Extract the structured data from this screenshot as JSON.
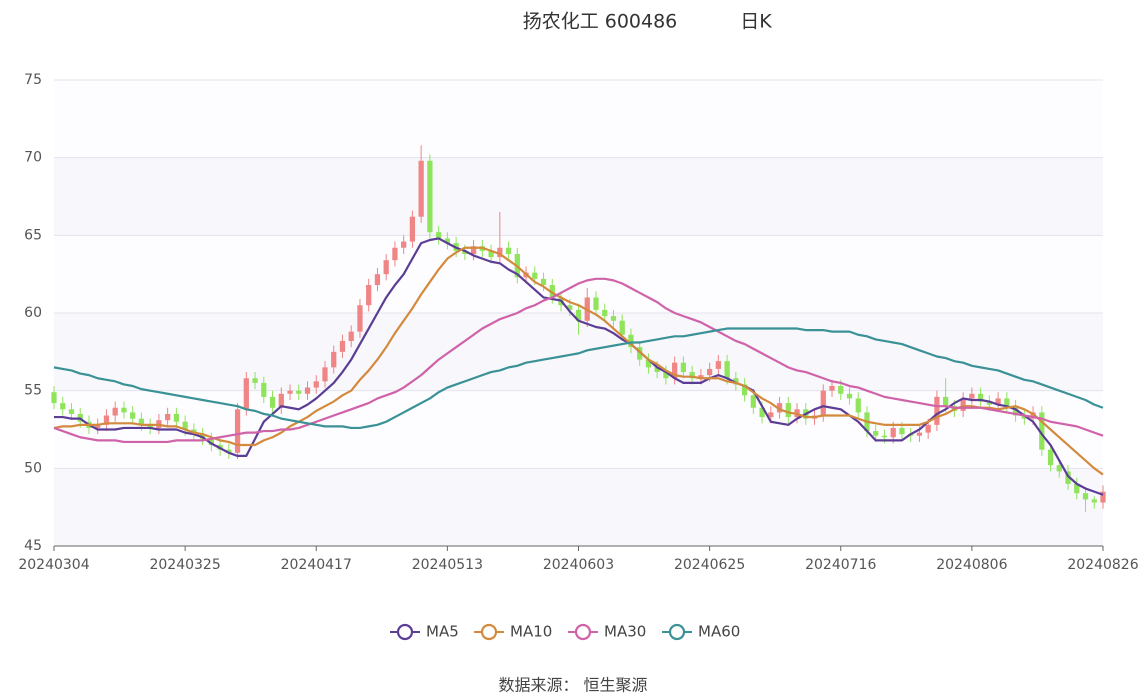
{
  "chart_data": {
    "type": "candlestick",
    "title": "扬农化工 600486",
    "period": "日K",
    "source": "数据来源： 恒生聚源",
    "ylim": [
      45,
      75
    ],
    "yticks": [
      45,
      50,
      55,
      60,
      65,
      70,
      75
    ],
    "grid": true,
    "legend": "bottom",
    "up_color": "#ef8585",
    "down_color": "#8fe45c",
    "categories": [
      "20240304",
      null,
      null,
      null,
      null,
      null,
      null,
      null,
      null,
      null,
      null,
      null,
      null,
      null,
      null,
      "20240325",
      null,
      null,
      null,
      null,
      null,
      null,
      null,
      null,
      null,
      null,
      null,
      null,
      null,
      null,
      "20240417",
      null,
      null,
      null,
      null,
      null,
      null,
      null,
      null,
      null,
      null,
      null,
      null,
      null,
      null,
      "20240513",
      null,
      null,
      null,
      null,
      null,
      null,
      null,
      null,
      null,
      null,
      null,
      null,
      null,
      null,
      "20240603",
      null,
      null,
      null,
      null,
      null,
      null,
      null,
      null,
      null,
      null,
      null,
      null,
      null,
      null,
      "20240625",
      null,
      null,
      null,
      null,
      null,
      null,
      null,
      null,
      null,
      null,
      null,
      null,
      null,
      null,
      "20240716",
      null,
      null,
      null,
      null,
      null,
      null,
      null,
      null,
      null,
      null,
      null,
      null,
      null,
      null,
      "20240806",
      null,
      null,
      null,
      null,
      null,
      null,
      null,
      null,
      null,
      null,
      null,
      null,
      null,
      null,
      "20240826"
    ],
    "open": [
      54.9,
      54.2,
      53.8,
      53.5,
      53.0,
      52.6,
      52.8,
      53.4,
      53.9,
      53.6,
      53.2,
      52.8,
      52.6,
      53.1,
      53.5,
      53.0,
      52.5,
      52.2,
      51.9,
      51.5,
      51.2,
      51.0,
      53.8,
      55.8,
      55.5,
      54.6,
      53.9,
      54.8,
      55.0,
      54.8,
      55.2,
      55.6,
      56.5,
      57.5,
      58.2,
      58.8,
      60.5,
      61.8,
      62.5,
      63.4,
      64.2,
      64.6,
      66.2,
      69.8,
      65.2,
      64.8,
      64.5,
      64.0,
      63.8,
      64.3,
      64.0,
      63.6,
      64.2,
      63.8,
      62.3,
      62.6,
      62.2,
      61.8,
      61.0,
      60.5,
      60.2,
      59.5,
      61.0,
      60.2,
      59.8,
      59.5,
      58.6,
      57.8,
      57.0,
      56.5,
      56.2,
      55.8,
      56.8,
      56.2,
      55.8,
      56.0,
      56.4,
      56.9,
      55.8,
      55.4,
      54.7,
      53.9,
      53.3,
      53.6,
      54.2,
      53.3,
      53.8,
      53.2,
      53.4,
      55.0,
      55.3,
      54.8,
      54.5,
      53.6,
      52.4,
      52.1,
      52.0,
      52.6,
      52.2,
      52.1,
      52.3,
      52.8,
      54.6,
      54.0,
      53.7,
      54.5,
      54.8,
      54.3,
      54.1,
      54.5,
      54.0,
      53.4,
      53.2,
      53.6,
      51.2,
      50.2,
      49.8,
      49.0,
      48.4,
      48.0,
      47.8
    ],
    "close": [
      54.2,
      53.8,
      53.5,
      53.0,
      52.6,
      52.8,
      53.4,
      53.9,
      53.6,
      53.2,
      52.8,
      52.6,
      53.1,
      53.5,
      53.0,
      52.5,
      52.2,
      51.9,
      51.5,
      51.2,
      51.0,
      53.8,
      55.8,
      55.5,
      54.6,
      53.9,
      54.8,
      55.0,
      54.8,
      55.2,
      55.6,
      56.5,
      57.5,
      58.2,
      58.8,
      60.5,
      61.8,
      62.5,
      63.4,
      64.2,
      64.6,
      66.2,
      69.8,
      65.2,
      64.8,
      64.5,
      64.0,
      63.8,
      64.3,
      64.0,
      63.6,
      64.2,
      63.8,
      62.3,
      62.6,
      62.2,
      61.8,
      61.0,
      60.5,
      60.2,
      59.5,
      61.0,
      60.2,
      59.8,
      59.5,
      58.6,
      57.8,
      57.0,
      56.5,
      56.2,
      55.8,
      56.8,
      56.2,
      55.8,
      56.0,
      56.4,
      56.9,
      55.8,
      55.4,
      54.7,
      53.9,
      53.3,
      53.6,
      54.2,
      53.3,
      53.8,
      53.2,
      53.4,
      55.0,
      55.3,
      54.8,
      54.5,
      53.6,
      52.4,
      52.1,
      52.0,
      52.6,
      52.2,
      52.1,
      52.3,
      52.8,
      54.6,
      54.0,
      53.7,
      54.5,
      54.8,
      54.3,
      54.1,
      54.5,
      54.0,
      53.4,
      53.2,
      53.6,
      51.2,
      50.2,
      49.8,
      49.0,
      48.4,
      48.0,
      47.8,
      48.5
    ],
    "high": [
      55.3,
      54.6,
      54.2,
      53.9,
      53.4,
      53.2,
      53.8,
      54.3,
      54.3,
      54.0,
      53.6,
      53.2,
      53.5,
      53.9,
      53.9,
      53.4,
      52.9,
      52.6,
      52.3,
      51.9,
      51.6,
      54.2,
      56.2,
      56.2,
      55.9,
      55.0,
      55.2,
      55.4,
      55.4,
      55.6,
      56.0,
      56.9,
      57.9,
      58.6,
      59.2,
      60.9,
      62.2,
      62.9,
      63.8,
      64.6,
      65.0,
      66.6,
      70.8,
      70.2,
      65.6,
      65.2,
      64.9,
      64.4,
      64.7,
      64.7,
      64.4,
      66.5,
      64.6,
      64.2,
      63.0,
      63.0,
      62.6,
      62.2,
      61.4,
      60.9,
      60.6,
      61.6,
      61.4,
      60.6,
      60.2,
      59.9,
      59.0,
      58.2,
      57.4,
      56.9,
      56.6,
      57.2,
      57.2,
      56.6,
      56.4,
      56.8,
      57.3,
      57.3,
      56.2,
      55.8,
      55.1,
      54.3,
      54.0,
      54.6,
      54.6,
      54.2,
      54.2,
      53.8,
      55.4,
      55.7,
      55.7,
      55.2,
      54.9,
      54.0,
      52.8,
      52.5,
      53.0,
      53.0,
      52.6,
      52.7,
      53.2,
      55.0,
      55.8,
      54.4,
      54.9,
      55.2,
      55.2,
      54.7,
      54.9,
      54.9,
      54.4,
      53.8,
      54.0,
      54.0,
      51.6,
      50.6,
      50.2,
      49.4,
      48.8,
      48.2,
      48.9
    ],
    "low": [
      53.8,
      53.4,
      53.1,
      52.6,
      52.2,
      52.2,
      52.4,
      53.0,
      53.2,
      52.8,
      52.4,
      52.2,
      52.2,
      52.7,
      52.6,
      52.1,
      51.8,
      51.5,
      51.1,
      50.8,
      50.6,
      50.6,
      53.4,
      55.1,
      54.2,
      53.5,
      53.5,
      54.4,
      54.4,
      54.4,
      54.8,
      55.2,
      56.1,
      57.1,
      57.8,
      58.4,
      60.1,
      61.4,
      62.1,
      63.0,
      63.8,
      64.2,
      65.8,
      64.8,
      64.4,
      64.1,
      63.6,
      63.4,
      63.4,
      63.6,
      63.2,
      63.2,
      63.4,
      61.9,
      61.9,
      61.8,
      61.4,
      60.6,
      60.1,
      59.8,
      58.6,
      59.1,
      59.8,
      59.4,
      59.1,
      58.2,
      57.4,
      56.6,
      56.1,
      55.8,
      55.4,
      55.4,
      55.8,
      55.4,
      55.4,
      55.6,
      56.0,
      55.4,
      55.0,
      54.3,
      53.5,
      52.9,
      52.9,
      53.2,
      52.9,
      52.9,
      52.8,
      52.8,
      53.0,
      54.6,
      54.4,
      54.1,
      53.2,
      52.0,
      51.7,
      51.6,
      51.6,
      51.8,
      51.7,
      51.7,
      51.9,
      52.4,
      53.6,
      53.3,
      53.3,
      54.1,
      53.9,
      53.7,
      53.7,
      53.6,
      53.0,
      52.8,
      52.8,
      50.8,
      49.8,
      49.4,
      48.6,
      48.0,
      47.2,
      47.4,
      47.4
    ],
    "lines": [
      {
        "name": "MA5",
        "color": "#5b3d96",
        "values": [
          53.3,
          53.3,
          53.2,
          53.2,
          52.8,
          52.5,
          52.5,
          52.5,
          52.6,
          52.6,
          52.6,
          52.6,
          52.5,
          52.5,
          52.5,
          52.3,
          52.2,
          52.0,
          51.6,
          51.3,
          51.0,
          50.8,
          50.8,
          51.9,
          53.0,
          53.5,
          54.0,
          53.9,
          53.8,
          54.1,
          54.5,
          55.0,
          55.5,
          56.2,
          57.0,
          58.0,
          59.0,
          60.0,
          61.0,
          61.8,
          62.5,
          63.5,
          64.5,
          64.7,
          64.8,
          64.5,
          64.2,
          64.0,
          63.7,
          63.5,
          63.3,
          63.2,
          62.8,
          62.5,
          62.0,
          61.5,
          61.0,
          60.9,
          60.8,
          60.1,
          59.5,
          59.3,
          59.1,
          59.0,
          58.7,
          58.3,
          58.0,
          57.5,
          57.0,
          56.5,
          56.2,
          55.8,
          55.5,
          55.5,
          55.5,
          55.8,
          56.0,
          55.8,
          55.5,
          55.3,
          55.0,
          54.0,
          53.0,
          52.9,
          52.8,
          53.2,
          53.5,
          53.8,
          54.0,
          53.9,
          53.8,
          53.4,
          53.0,
          52.4,
          51.8,
          51.8,
          51.8,
          51.8,
          52.2,
          52.5,
          53.0,
          53.5,
          53.8,
          54.2,
          54.5,
          54.4,
          54.4,
          54.3,
          54.1,
          54.0,
          53.8,
          53.4,
          53.0,
          52.2,
          51.5,
          50.5,
          49.5,
          49.0,
          48.7,
          48.5,
          48.3
        ]
      },
      {
        "name": "MA10",
        "color": "#d48a3c",
        "values": [
          52.6,
          52.7,
          52.7,
          52.8,
          52.8,
          52.8,
          52.9,
          52.9,
          52.9,
          52.9,
          52.8,
          52.8,
          52.8,
          52.7,
          52.7,
          52.5,
          52.3,
          52.2,
          52.0,
          51.8,
          51.7,
          51.5,
          51.5,
          51.5,
          51.8,
          52.0,
          52.3,
          52.7,
          53.0,
          53.3,
          53.7,
          54.0,
          54.3,
          54.7,
          55.0,
          55.7,
          56.3,
          57.0,
          57.8,
          58.7,
          59.5,
          60.3,
          61.2,
          62.0,
          62.8,
          63.5,
          63.9,
          64.2,
          64.2,
          64.2,
          64.0,
          63.8,
          63.4,
          63.0,
          62.5,
          62.0,
          61.7,
          61.3,
          61.0,
          60.7,
          60.5,
          60.2,
          59.9,
          59.5,
          59.0,
          58.5,
          58.0,
          57.5,
          57.0,
          56.7,
          56.3,
          56.0,
          55.9,
          55.9,
          55.8,
          55.8,
          55.8,
          55.6,
          55.5,
          55.3,
          54.9,
          54.5,
          54.2,
          53.8,
          53.6,
          53.5,
          53.3,
          53.3,
          53.4,
          53.4,
          53.4,
          53.4,
          53.2,
          53.0,
          52.9,
          52.8,
          52.8,
          52.8,
          52.8,
          52.8,
          53.0,
          53.3,
          53.5,
          53.8,
          54.0,
          54.0,
          53.9,
          53.9,
          53.8,
          53.9,
          54.0,
          53.8,
          53.5,
          53.0,
          52.5,
          52.0,
          51.5,
          51.0,
          50.5,
          50.0,
          49.6
        ]
      },
      {
        "name": "MA30",
        "color": "#cf62a8",
        "values": [
          52.6,
          52.4,
          52.2,
          52.0,
          51.9,
          51.8,
          51.8,
          51.8,
          51.7,
          51.7,
          51.7,
          51.7,
          51.7,
          51.7,
          51.8,
          51.8,
          51.8,
          51.8,
          51.9,
          52.0,
          52.1,
          52.2,
          52.3,
          52.3,
          52.4,
          52.4,
          52.5,
          52.5,
          52.6,
          52.8,
          53.0,
          53.2,
          53.4,
          53.6,
          53.8,
          54.0,
          54.2,
          54.5,
          54.7,
          54.9,
          55.2,
          55.6,
          56.0,
          56.5,
          57.0,
          57.4,
          57.8,
          58.2,
          58.6,
          59.0,
          59.3,
          59.6,
          59.8,
          60.0,
          60.3,
          60.5,
          60.8,
          61.0,
          61.3,
          61.6,
          61.9,
          62.1,
          62.2,
          62.2,
          62.1,
          61.9,
          61.6,
          61.3,
          61.0,
          60.7,
          60.3,
          60.0,
          59.8,
          59.6,
          59.4,
          59.1,
          58.8,
          58.5,
          58.2,
          58.0,
          57.7,
          57.4,
          57.1,
          56.8,
          56.5,
          56.3,
          56.2,
          56.0,
          55.8,
          55.6,
          55.5,
          55.3,
          55.2,
          55.0,
          54.8,
          54.6,
          54.5,
          54.4,
          54.3,
          54.2,
          54.1,
          54.0,
          54.0,
          53.9,
          53.9,
          53.9,
          53.9,
          53.8,
          53.7,
          53.6,
          53.5,
          53.4,
          53.3,
          53.2,
          53.0,
          52.9,
          52.8,
          52.7,
          52.5,
          52.3,
          52.1
        ]
      },
      {
        "name": "MA60",
        "color": "#3a9196",
        "values": [
          56.5,
          56.4,
          56.3,
          56.1,
          56.0,
          55.8,
          55.7,
          55.6,
          55.4,
          55.3,
          55.1,
          55.0,
          54.9,
          54.8,
          54.7,
          54.6,
          54.5,
          54.4,
          54.3,
          54.2,
          54.1,
          54.0,
          53.8,
          53.7,
          53.5,
          53.4,
          53.2,
          53.1,
          53.0,
          52.9,
          52.8,
          52.7,
          52.7,
          52.7,
          52.6,
          52.6,
          52.7,
          52.8,
          53.0,
          53.3,
          53.6,
          53.9,
          54.2,
          54.5,
          54.9,
          55.2,
          55.4,
          55.6,
          55.8,
          56.0,
          56.2,
          56.3,
          56.5,
          56.6,
          56.8,
          56.9,
          57.0,
          57.1,
          57.2,
          57.3,
          57.4,
          57.6,
          57.7,
          57.8,
          57.9,
          58.0,
          58.1,
          58.1,
          58.2,
          58.3,
          58.4,
          58.5,
          58.5,
          58.6,
          58.7,
          58.8,
          58.9,
          59.0,
          59.0,
          59.0,
          59.0,
          59.0,
          59.0,
          59.0,
          59.0,
          59.0,
          58.9,
          58.9,
          58.9,
          58.8,
          58.8,
          58.8,
          58.6,
          58.5,
          58.3,
          58.2,
          58.1,
          58.0,
          57.8,
          57.6,
          57.4,
          57.2,
          57.1,
          56.9,
          56.8,
          56.6,
          56.5,
          56.4,
          56.3,
          56.1,
          55.9,
          55.7,
          55.6,
          55.4,
          55.2,
          55.0,
          54.8,
          54.6,
          54.4,
          54.1,
          53.9
        ]
      }
    ]
  }
}
